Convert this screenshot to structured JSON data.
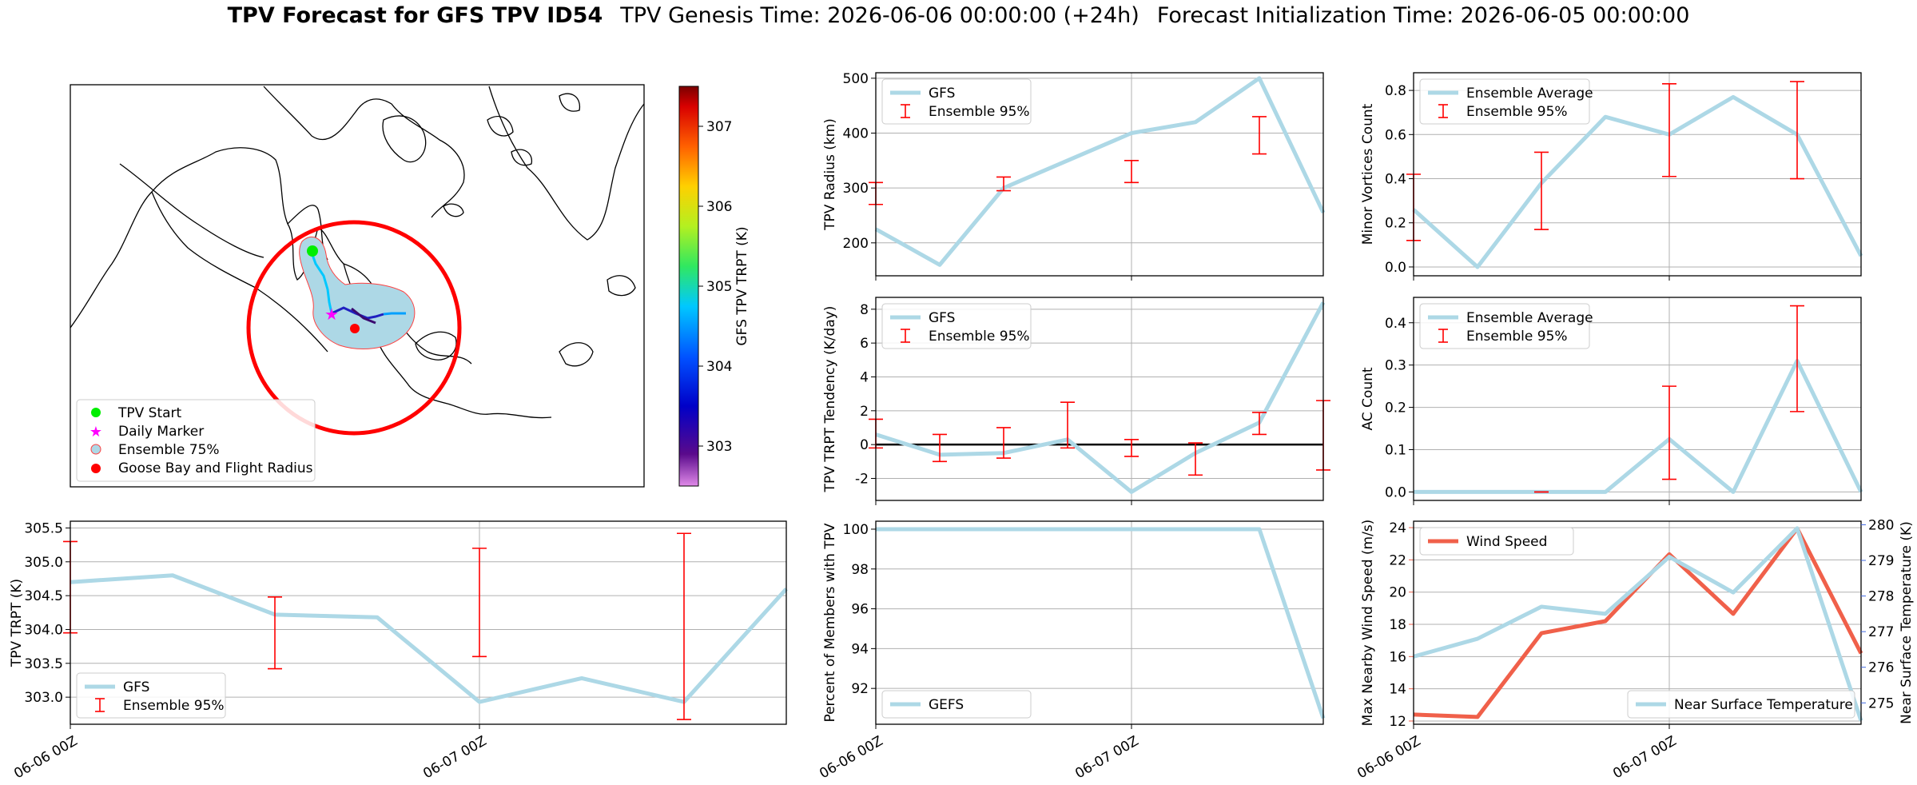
{
  "header": {
    "title_bold": "TPV Forecast for GFS TPV ID54",
    "genesis": "TPV Genesis Time: 2026-06-06 00:00:00 (+24h)",
    "init": "Forecast Initialization Time: 2026-06-05 00:00:00"
  },
  "map": {
    "colorbar_label": "GFS TPV TRPT (K)",
    "colorbar_ticks": [
      "307",
      "306",
      "305",
      "304",
      "303"
    ],
    "colorbar_range": [
      302.5,
      307.5
    ],
    "legend": [
      "TPV Start",
      "Daily Marker",
      "Ensemble 75%",
      "Goose Bay and Flight Radius"
    ],
    "colors": {
      "start": "#00ee00",
      "daily": "#ff00ff",
      "ensemble": "#add8e6",
      "goosebay": "#ff0000"
    }
  },
  "time_axis": {
    "ticks": [
      "06-06 00Z",
      "06-07 00Z"
    ]
  },
  "colors": {
    "line": "#add8e6",
    "err": "#ff0000",
    "wind": "#f0604a",
    "temp": "#4169e1"
  },
  "chart_data": [
    {
      "id": "radius",
      "type": "line",
      "ylabel": "TPV Radius (km)",
      "ylim": [
        140,
        510
      ],
      "yticks": [
        200,
        300,
        400,
        500
      ],
      "x": [
        0,
        3,
        6,
        9,
        12,
        15,
        18,
        21
      ],
      "series": [
        {
          "name": "GFS",
          "values": [
            225,
            160,
            300,
            350,
            400,
            420,
            500,
            255
          ]
        }
      ],
      "errorbars": {
        "name": "Ensemble 95%",
        "points": [
          [
            0,
            270,
            310
          ],
          [
            6,
            295,
            320
          ],
          [
            12,
            310,
            350
          ],
          [
            18,
            362,
            430
          ]
        ]
      }
    },
    {
      "id": "minor",
      "type": "line",
      "ylabel": "Minor Vortices Count",
      "ylim": [
        -0.04,
        0.88
      ],
      "yticks": [
        0.0,
        0.2,
        0.4,
        0.6,
        0.8
      ],
      "yticklabels": [
        "0.0",
        "0.2",
        "0.4",
        "0.6",
        "0.8"
      ],
      "x": [
        0,
        3,
        6,
        9,
        12,
        15,
        18,
        21
      ],
      "series": [
        {
          "name": "Ensemble Average",
          "values": [
            0.26,
            0.0,
            0.38,
            0.68,
            0.6,
            0.77,
            0.6,
            0.05
          ]
        }
      ],
      "errorbars": {
        "name": "Ensemble 95%",
        "points": [
          [
            0,
            0.12,
            0.42
          ],
          [
            6,
            0.17,
            0.52
          ],
          [
            12,
            0.41,
            0.83
          ],
          [
            18,
            0.4,
            0.84
          ]
        ]
      }
    },
    {
      "id": "tendency",
      "type": "line",
      "ylabel": "TPV TRPT Tendency (K/day)",
      "ylim": [
        -3.3,
        8.7
      ],
      "yticks": [
        -2,
        0,
        2,
        4,
        6,
        8
      ],
      "x": [
        0,
        3,
        6,
        9,
        12,
        15,
        18,
        21
      ],
      "series": [
        {
          "name": "GFS",
          "values": [
            0.6,
            -0.6,
            -0.5,
            0.3,
            -2.8,
            -0.5,
            1.3,
            8.4
          ]
        }
      ],
      "errorbars": {
        "name": "Ensemble 95%",
        "points": [
          [
            0,
            -0.2,
            1.5
          ],
          [
            3,
            -1.0,
            0.6
          ],
          [
            6,
            -0.8,
            1.0
          ],
          [
            9,
            -0.2,
            2.5
          ],
          [
            12,
            -0.7,
            0.3
          ],
          [
            15,
            -1.8,
            0.1
          ],
          [
            18,
            0.6,
            1.9
          ],
          [
            21,
            -1.5,
            2.6
          ]
        ]
      },
      "zero_line": true
    },
    {
      "id": "ac",
      "type": "line",
      "ylabel": "AC Count",
      "ylim": [
        -0.02,
        0.46
      ],
      "yticks": [
        0.0,
        0.1,
        0.2,
        0.3,
        0.4
      ],
      "yticklabels": [
        "0.0",
        "0.1",
        "0.2",
        "0.3",
        "0.4"
      ],
      "x": [
        0,
        3,
        6,
        9,
        12,
        15,
        18,
        21
      ],
      "series": [
        {
          "name": "Ensemble Average",
          "values": [
            0.0,
            0.0,
            0.0,
            0.0,
            0.125,
            0.0,
            0.31,
            0.0
          ]
        }
      ],
      "errorbars": {
        "name": "Ensemble 95%",
        "points": [
          [
            6,
            0.0,
            0.0
          ],
          [
            12,
            0.03,
            0.25
          ],
          [
            18,
            0.19,
            0.44
          ]
        ]
      }
    },
    {
      "id": "trpt",
      "type": "line",
      "ylabel": "TPV TRPT (K)",
      "ylim": [
        302.6,
        305.6
      ],
      "yticks": [
        303.0,
        303.5,
        304.0,
        304.5,
        305.0,
        305.5
      ],
      "yticklabels": [
        "303.0",
        "303.5",
        "304.0",
        "304.5",
        "305.0",
        "305.5"
      ],
      "x": [
        0,
        3,
        6,
        9,
        12,
        15,
        18,
        21
      ],
      "series": [
        {
          "name": "GFS",
          "values": [
            304.7,
            304.8,
            304.22,
            304.18,
            302.93,
            303.28,
            302.93,
            304.6
          ]
        }
      ],
      "errorbars": {
        "name": "Ensemble 95%",
        "points": [
          [
            0,
            303.95,
            305.3
          ],
          [
            6,
            303.42,
            304.48
          ],
          [
            12,
            303.6,
            305.2
          ],
          [
            18,
            302.67,
            305.42
          ]
        ]
      }
    },
    {
      "id": "members",
      "type": "line",
      "ylabel": "Percent of Members with TPV",
      "ylim": [
        90.2,
        100.4
      ],
      "yticks": [
        92,
        94,
        96,
        98,
        100
      ],
      "x": [
        0,
        3,
        6,
        9,
        12,
        15,
        18,
        21
      ],
      "series": [
        {
          "name": "GEFS",
          "values": [
            100,
            100,
            100,
            100,
            100,
            100,
            100,
            90.5
          ]
        }
      ]
    },
    {
      "id": "wind",
      "type": "line",
      "ylabel": "Max Nearby Wind Speed (m/s)",
      "ylabel_right": "Near Surface Temperature (K)",
      "ylim": [
        11.8,
        24.4
      ],
      "yticks": [
        12,
        14,
        16,
        18,
        20,
        22,
        24
      ],
      "ylim_right": [
        274.4,
        280.1
      ],
      "yticks_right": [
        275,
        276,
        277,
        278,
        279,
        280
      ],
      "x": [
        0,
        3,
        6,
        9,
        12,
        15,
        18,
        21
      ],
      "series": [
        {
          "name": "Wind Speed",
          "axis": "left",
          "values": [
            12.4,
            12.25,
            17.45,
            18.2,
            22.35,
            18.65,
            23.95,
            16.2
          ]
        },
        {
          "name": "Near Surface Temperature",
          "axis": "right",
          "values": [
            276.3,
            276.8,
            277.7,
            277.5,
            279.1,
            278.1,
            279.9,
            274.5
          ]
        }
      ]
    }
  ]
}
